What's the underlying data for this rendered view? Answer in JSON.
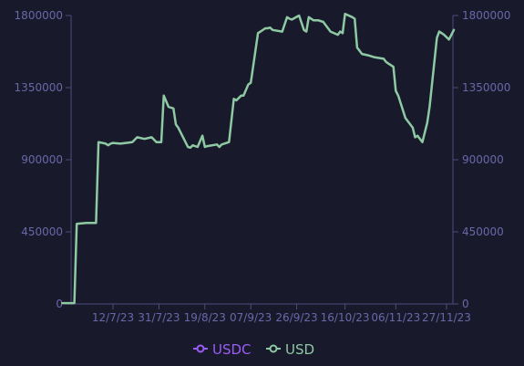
{
  "colors": {
    "background": "#181a2c",
    "axis": "#4e4a7a",
    "tick_text": "#6a66a8",
    "usdc": "#9b5cf6",
    "usd": "#8fc9a3"
  },
  "chart_data": {
    "type": "line",
    "x_ticks": [
      "12/7/23",
      "31/7/23",
      "19/8/23",
      "07/9/23",
      "26/9/23",
      "16/10/23",
      "06/11/23",
      "27/11/23"
    ],
    "y_left_ticks": [
      "0",
      "450000",
      "900000",
      "1350000",
      "1800000"
    ],
    "y_right_ticks": [
      "0",
      "450000",
      "900000",
      "1350000",
      "1800000"
    ],
    "ylim": [
      0,
      1800000
    ],
    "grid": false,
    "legend_position": "bottom-center",
    "legend": [
      "USDC",
      "USD"
    ],
    "series": [
      {
        "name": "USDC",
        "color": "#9b5cf6",
        "x": [],
        "values": []
      },
      {
        "name": "USD",
        "color": "#8fc9a3",
        "x": [
          "2023-06-21",
          "2023-06-26",
          "2023-06-27",
          "2023-07-01",
          "2023-07-05",
          "2023-07-06",
          "2023-07-09",
          "2023-07-10",
          "2023-07-11",
          "2023-07-12",
          "2023-07-15",
          "2023-07-20",
          "2023-07-22",
          "2023-07-25",
          "2023-07-28",
          "2023-07-30",
          "2023-08-01",
          "2023-08-02",
          "2023-08-04",
          "2023-08-06",
          "2023-08-07",
          "2023-08-08",
          "2023-08-10",
          "2023-08-12",
          "2023-08-13",
          "2023-08-14",
          "2023-08-16",
          "2023-08-18",
          "2023-08-19",
          "2023-08-20",
          "2023-08-24",
          "2023-08-25",
          "2023-08-26",
          "2023-08-29",
          "2023-08-31",
          "2023-09-01",
          "2023-09-03",
          "2023-09-04",
          "2023-09-06",
          "2023-09-07",
          "2023-09-10",
          "2023-09-11",
          "2023-09-13",
          "2023-09-14",
          "2023-09-15",
          "2023-09-16",
          "2023-09-20",
          "2023-09-22",
          "2023-09-23",
          "2023-09-24",
          "2023-09-27",
          "2023-09-29",
          "2023-09-30",
          "2023-10-01",
          "2023-10-03",
          "2023-10-05",
          "2023-10-07",
          "2023-10-10",
          "2023-10-13",
          "2023-10-14",
          "2023-10-15",
          "2023-10-16",
          "2023-10-19",
          "2023-10-20",
          "2023-10-21",
          "2023-10-23",
          "2023-10-26",
          "2023-10-28",
          "2023-11-01",
          "2023-11-02",
          "2023-11-03",
          "2023-11-05",
          "2023-11-06",
          "2023-11-07",
          "2023-11-10",
          "2023-11-13",
          "2023-11-14",
          "2023-11-15",
          "2023-11-17",
          "2023-11-19",
          "2023-11-20",
          "2023-11-23",
          "2023-11-24",
          "2023-11-26",
          "2023-11-28",
          "2023-11-30"
        ],
        "values": [
          5000,
          5000,
          500000,
          505000,
          505000,
          1010000,
          1000000,
          990000,
          1000000,
          1005000,
          1000000,
          1010000,
          1040000,
          1030000,
          1040000,
          1010000,
          1010000,
          1300000,
          1230000,
          1220000,
          1120000,
          1100000,
          1040000,
          980000,
          975000,
          990000,
          980000,
          1050000,
          980000,
          985000,
          995000,
          980000,
          995000,
          1010000,
          1280000,
          1270000,
          1300000,
          1300000,
          1370000,
          1380000,
          1690000,
          1700000,
          1720000,
          1720000,
          1725000,
          1710000,
          1700000,
          1790000,
          1780000,
          1775000,
          1800000,
          1710000,
          1700000,
          1790000,
          1770000,
          1770000,
          1760000,
          1700000,
          1680000,
          1700000,
          1690000,
          1810000,
          1790000,
          1780000,
          1600000,
          1560000,
          1550000,
          1540000,
          1530000,
          1510000,
          1500000,
          1480000,
          1330000,
          1300000,
          1160000,
          1100000,
          1040000,
          1050000,
          1010000,
          1130000,
          1230000,
          1660000,
          1700000,
          1680000,
          1650000,
          1710000
        ]
      }
    ]
  }
}
